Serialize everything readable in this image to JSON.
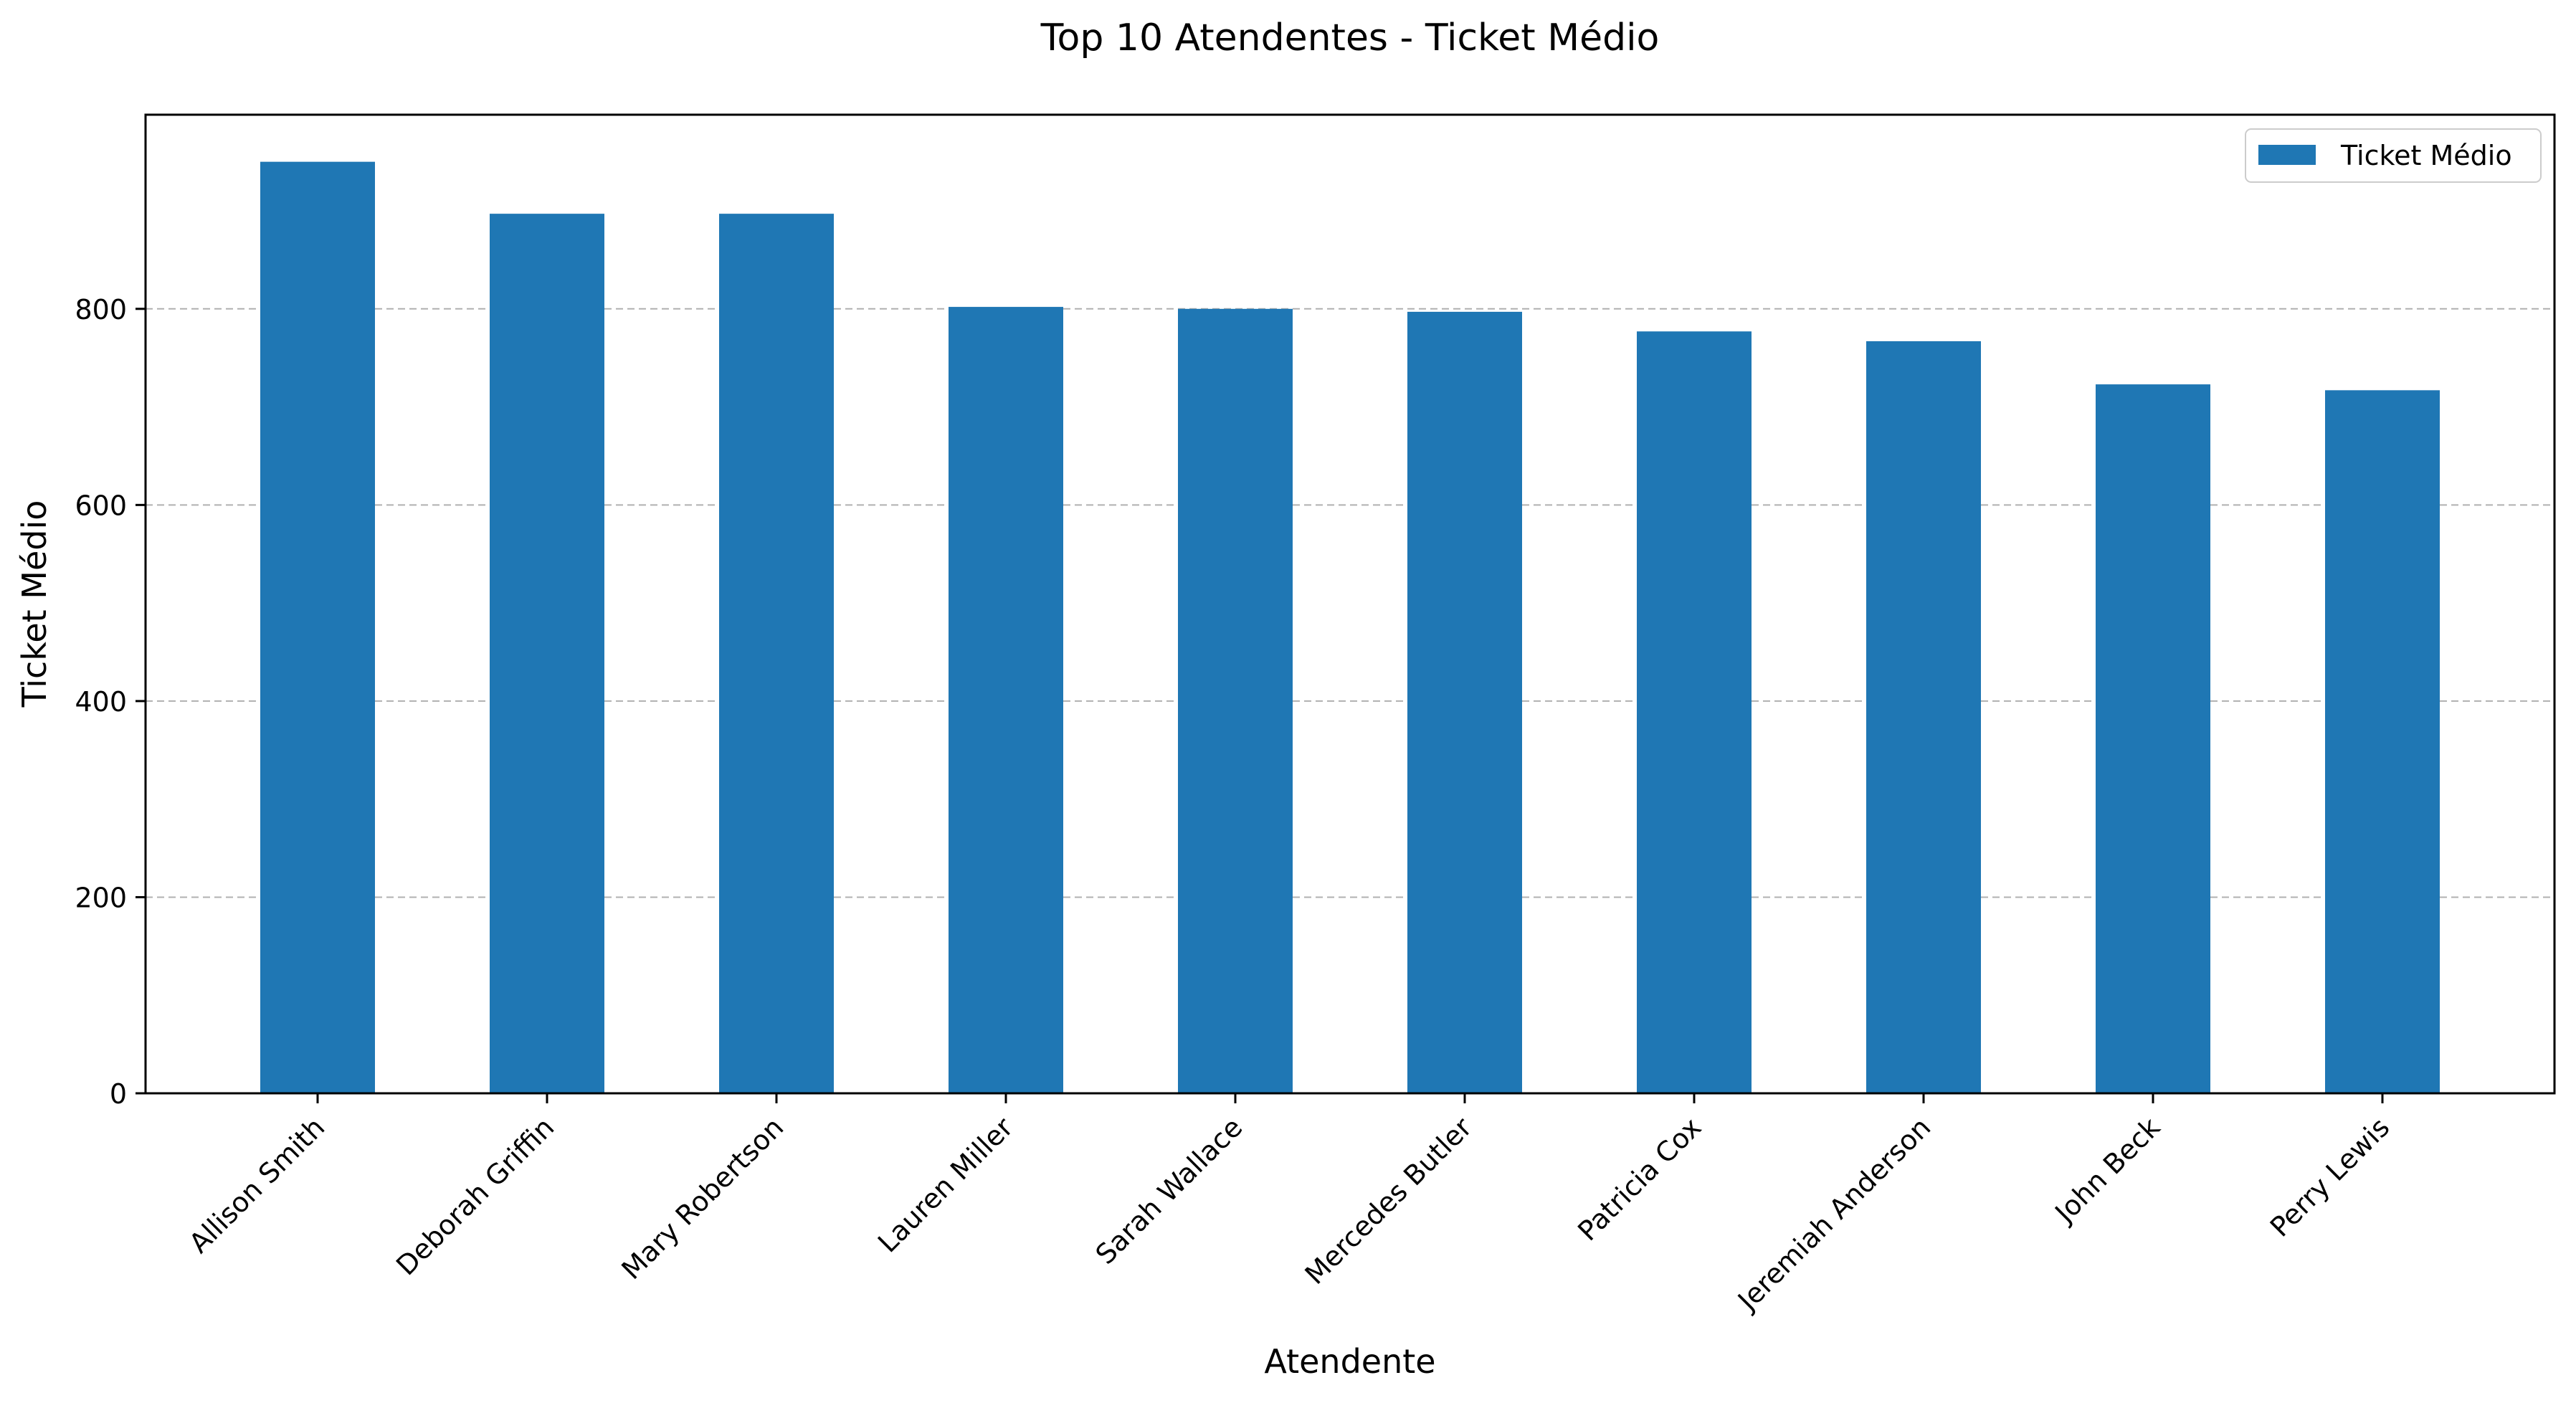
{
  "chart_data": {
    "type": "bar",
    "title": "Top 10 Atendentes - Ticket Médio",
    "xlabel": "Atendente",
    "ylabel": "Ticket Médio",
    "categories": [
      "Allison Smith",
      "Deborah Griffin",
      "Mary Robertson",
      "Lauren Miller",
      "Sarah Wallace",
      "Mercedes Butler",
      "Patricia Cox",
      "Jeremiah Anderson",
      "John Beck",
      "Perry Lewis"
    ],
    "series": [
      {
        "name": "Ticket Médio",
        "values": [
          950,
          897,
          897,
          802,
          800,
          797,
          777,
          767,
          723,
          717
        ]
      }
    ],
    "ylim": [
      0,
      998
    ],
    "yticks": [
      0,
      200,
      400,
      600,
      800
    ],
    "grid": "y-dashed",
    "legend": "top-right",
    "color": "#1f77b4"
  }
}
